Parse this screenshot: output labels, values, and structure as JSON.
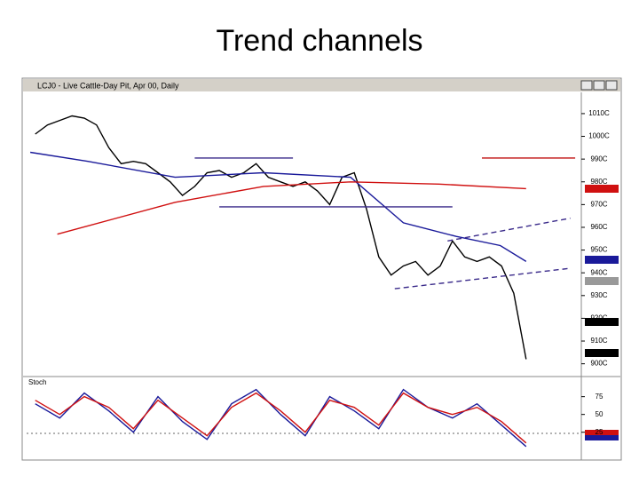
{
  "title": "Trend channels",
  "window": {
    "title": "LCJ0 - Live Cattle-Day Pit, Apr 00, Daily"
  },
  "chart_data": [
    {
      "type": "line",
      "xlim": [
        -0.7,
        44.5
      ],
      "ylim": [
        894,
        1017
      ],
      "yticks": [
        {
          "value": 1010,
          "label": "1010C"
        },
        {
          "value": 1000,
          "label": "1000C"
        },
        {
          "value": 990,
          "label": "990C"
        },
        {
          "value": 980,
          "label": "980C"
        },
        {
          "value": 970,
          "label": "970C"
        },
        {
          "value": 960,
          "label": "960C"
        },
        {
          "value": 950,
          "label": "950C"
        },
        {
          "value": 940,
          "label": "940C"
        },
        {
          "value": 930,
          "label": "930C"
        },
        {
          "value": 920,
          "label": "920C"
        },
        {
          "value": 910,
          "label": "910C"
        },
        {
          "value": 900,
          "label": "900C"
        }
      ],
      "series": [
        {
          "color": "#000000",
          "x": [
            0,
            1,
            2,
            3,
            4,
            5,
            6,
            7,
            8,
            9,
            10,
            11,
            12,
            13,
            14,
            15,
            16,
            17,
            18,
            19,
            20,
            21,
            22,
            23,
            24,
            25,
            26,
            27,
            28,
            29,
            30,
            31,
            32,
            33,
            34,
            35,
            36,
            37,
            38,
            39,
            40
          ],
          "values": [
            1001,
            1005,
            1007,
            1009,
            1008,
            1005,
            995,
            988,
            989,
            988,
            984,
            980,
            974,
            978,
            984,
            985,
            982,
            984,
            988,
            982,
            980,
            978,
            980,
            976,
            970,
            982,
            984,
            968,
            947,
            939,
            943,
            945,
            939,
            943,
            954,
            947,
            945,
            947,
            943,
            931,
            902
          ]
        },
        {
          "color": "#1a1a9a",
          "x": [
            -0.4,
            4.3,
            11.4,
            18.6,
            25.7,
            30,
            34.3,
            37.9,
            40
          ],
          "values": [
            993,
            989,
            982,
            984,
            982,
            962,
            956,
            952,
            945
          ]
        },
        {
          "color": "#d01010",
          "x": [
            1.8,
            11.4,
            18.6,
            25.7,
            32.9,
            40
          ],
          "values": [
            957,
            971,
            978,
            980,
            979,
            977
          ]
        },
        {
          "color": "#3a2a8a",
          "x": [
            13,
            21
          ],
          "values": [
            990.5,
            990.5
          ]
        },
        {
          "color": "#3a2a8a",
          "x": [
            15,
            34
          ],
          "values": [
            969,
            969
          ]
        },
        {
          "color": "#3a2a8a",
          "x": [
            33.6,
            43.6
          ],
          "values": [
            954,
            964
          ],
          "style": "dashed"
        },
        {
          "color": "#3a2a8a",
          "x": [
            29.3,
            43.6
          ],
          "values": [
            933,
            942
          ],
          "style": "dashed"
        },
        {
          "color": "#c01010",
          "x": [
            36.4,
            44
          ],
          "values": [
            990.5,
            990.5
          ]
        }
      ]
    },
    {
      "type": "line",
      "title": "Stoch",
      "xlim": [
        -0.7,
        44.5
      ],
      "ylim": [
        -14,
        102
      ],
      "yticks": [
        25,
        50,
        75
      ],
      "series": [
        {
          "color": "#1a1a9a",
          "x": [
            0,
            2,
            4,
            6,
            8,
            10,
            12,
            14,
            16,
            18,
            20,
            22,
            24,
            26,
            28,
            30,
            32,
            34,
            36,
            38,
            40
          ],
          "values": [
            65,
            45,
            80,
            55,
            25,
            75,
            40,
            15,
            65,
            85,
            50,
            20,
            75,
            55,
            30,
            85,
            60,
            45,
            65,
            35,
            5
          ]
        },
        {
          "color": "#d01010",
          "x": [
            0,
            2,
            4,
            6,
            8,
            10,
            12,
            14,
            16,
            18,
            20,
            22,
            24,
            26,
            28,
            30,
            32,
            34,
            36,
            38,
            40
          ],
          "values": [
            70,
            50,
            75,
            60,
            30,
            70,
            45,
            20,
            60,
            80,
            55,
            25,
            70,
            60,
            35,
            80,
            60,
            50,
            60,
            40,
            10
          ]
        }
      ]
    }
  ]
}
